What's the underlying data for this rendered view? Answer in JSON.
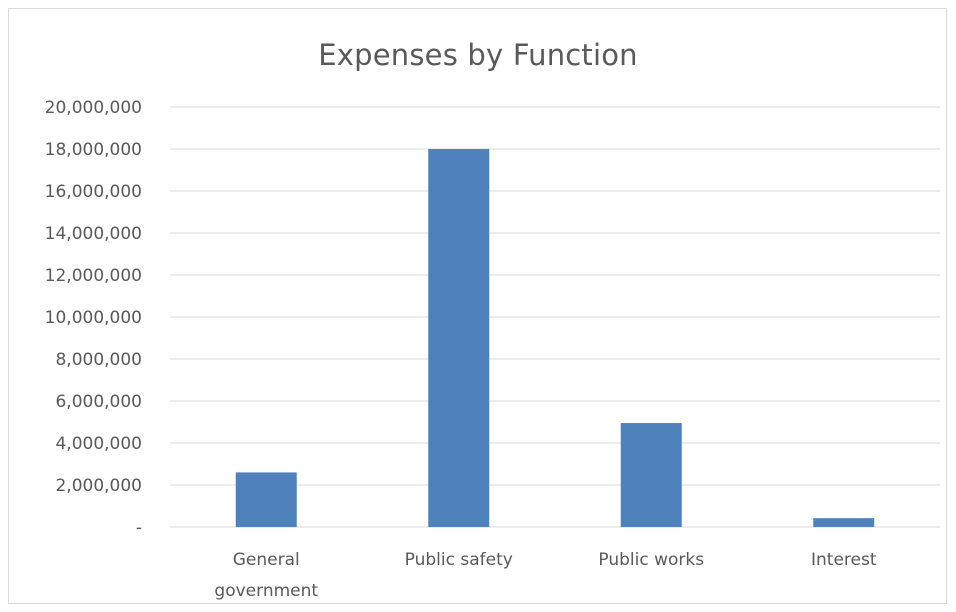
{
  "chart_data": {
    "type": "bar",
    "title": "Expenses by Function",
    "categories": [
      [
        "General",
        "government"
      ],
      [
        "Public safety"
      ],
      [
        "Public works"
      ],
      [
        "Interest"
      ]
    ],
    "values": [
      2600000,
      18000000,
      4950000,
      420000
    ],
    "ylim": [
      0,
      20000000
    ],
    "yticks": [
      0,
      2000000,
      4000000,
      6000000,
      8000000,
      10000000,
      12000000,
      14000000,
      16000000,
      18000000,
      20000000
    ],
    "ytick_labels": [
      "-",
      "2,000,000",
      "4,000,000",
      "6,000,000",
      "8,000,000",
      "10,000,000",
      "12,000,000",
      "14,000,000",
      "16,000,000",
      "18,000,000",
      "20,000,000"
    ],
    "grid": true,
    "legend": "none",
    "bar_color": "#4f81bd",
    "grid_color": "#d9d9d9"
  }
}
